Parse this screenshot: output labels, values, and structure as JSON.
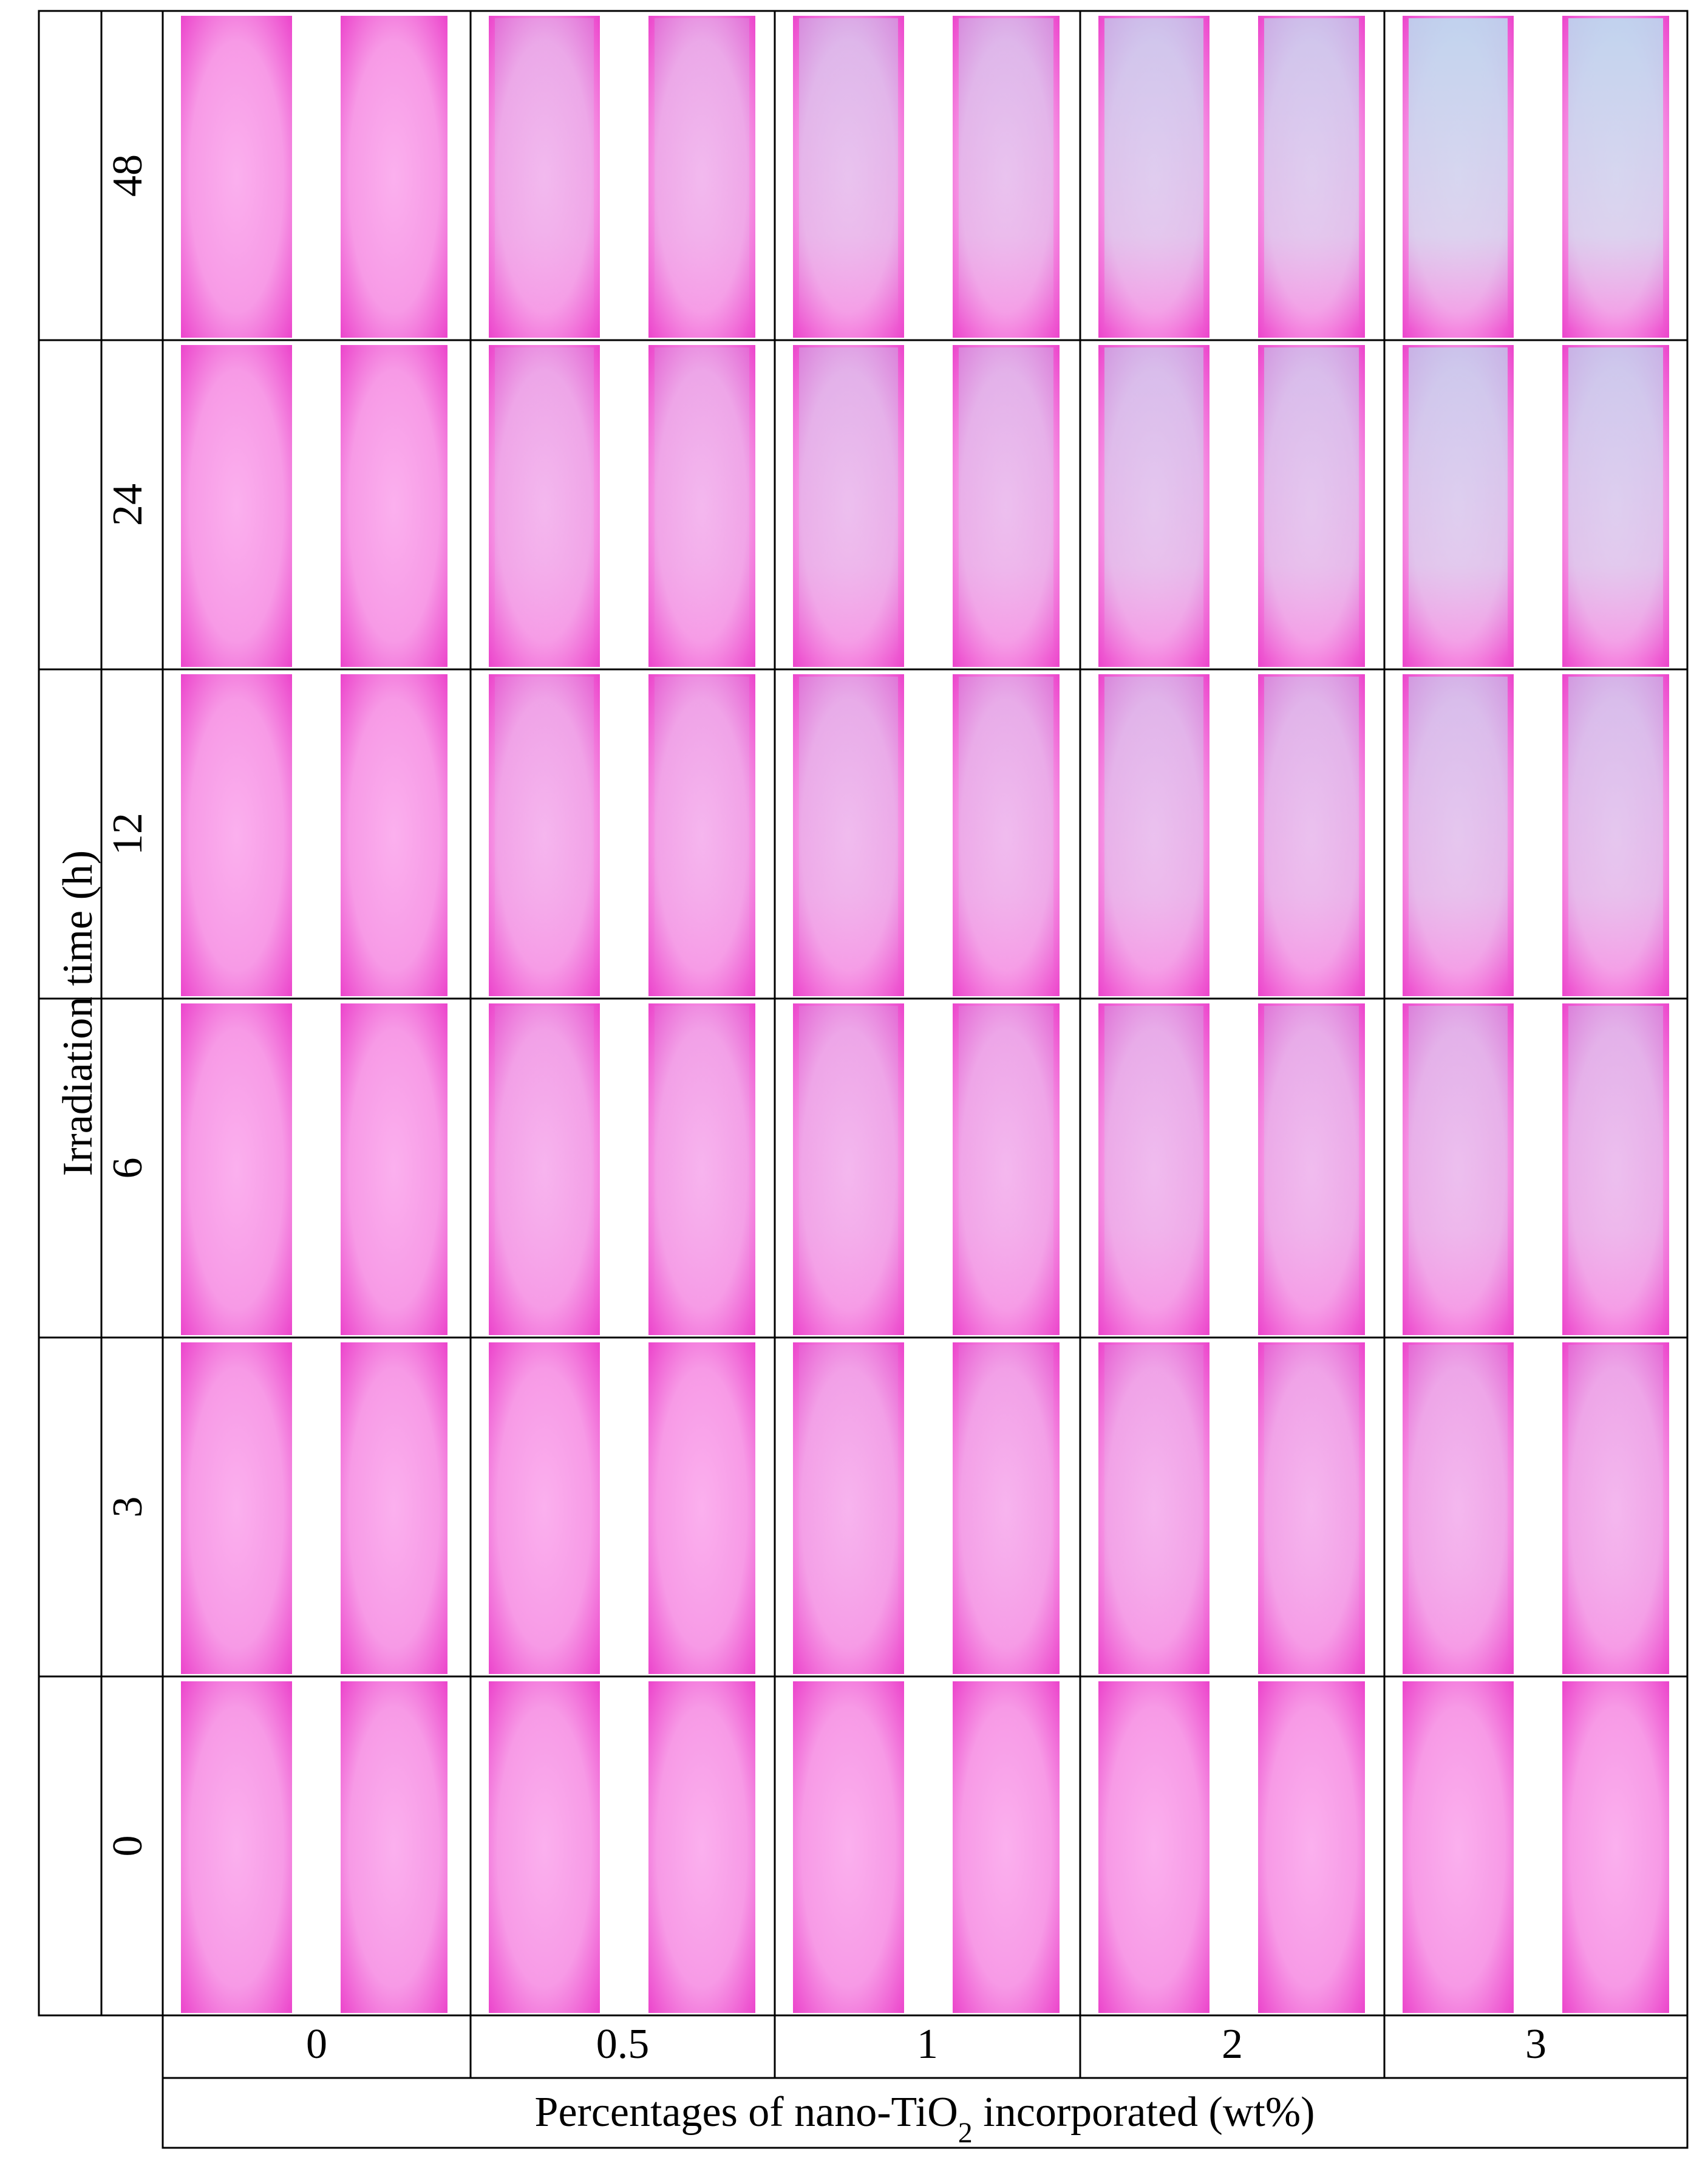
{
  "y_axis_label": "Irradiation time (h)",
  "rows": [
    "48",
    "24",
    "12",
    "6",
    "3",
    "0"
  ],
  "columns": [
    "0",
    "0.5",
    "1",
    "2",
    "3"
  ],
  "x_axis_label": {
    "parts": [
      "Percentages of nano-TiO",
      "2",
      " incorporated (wt%)"
    ]
  }
}
